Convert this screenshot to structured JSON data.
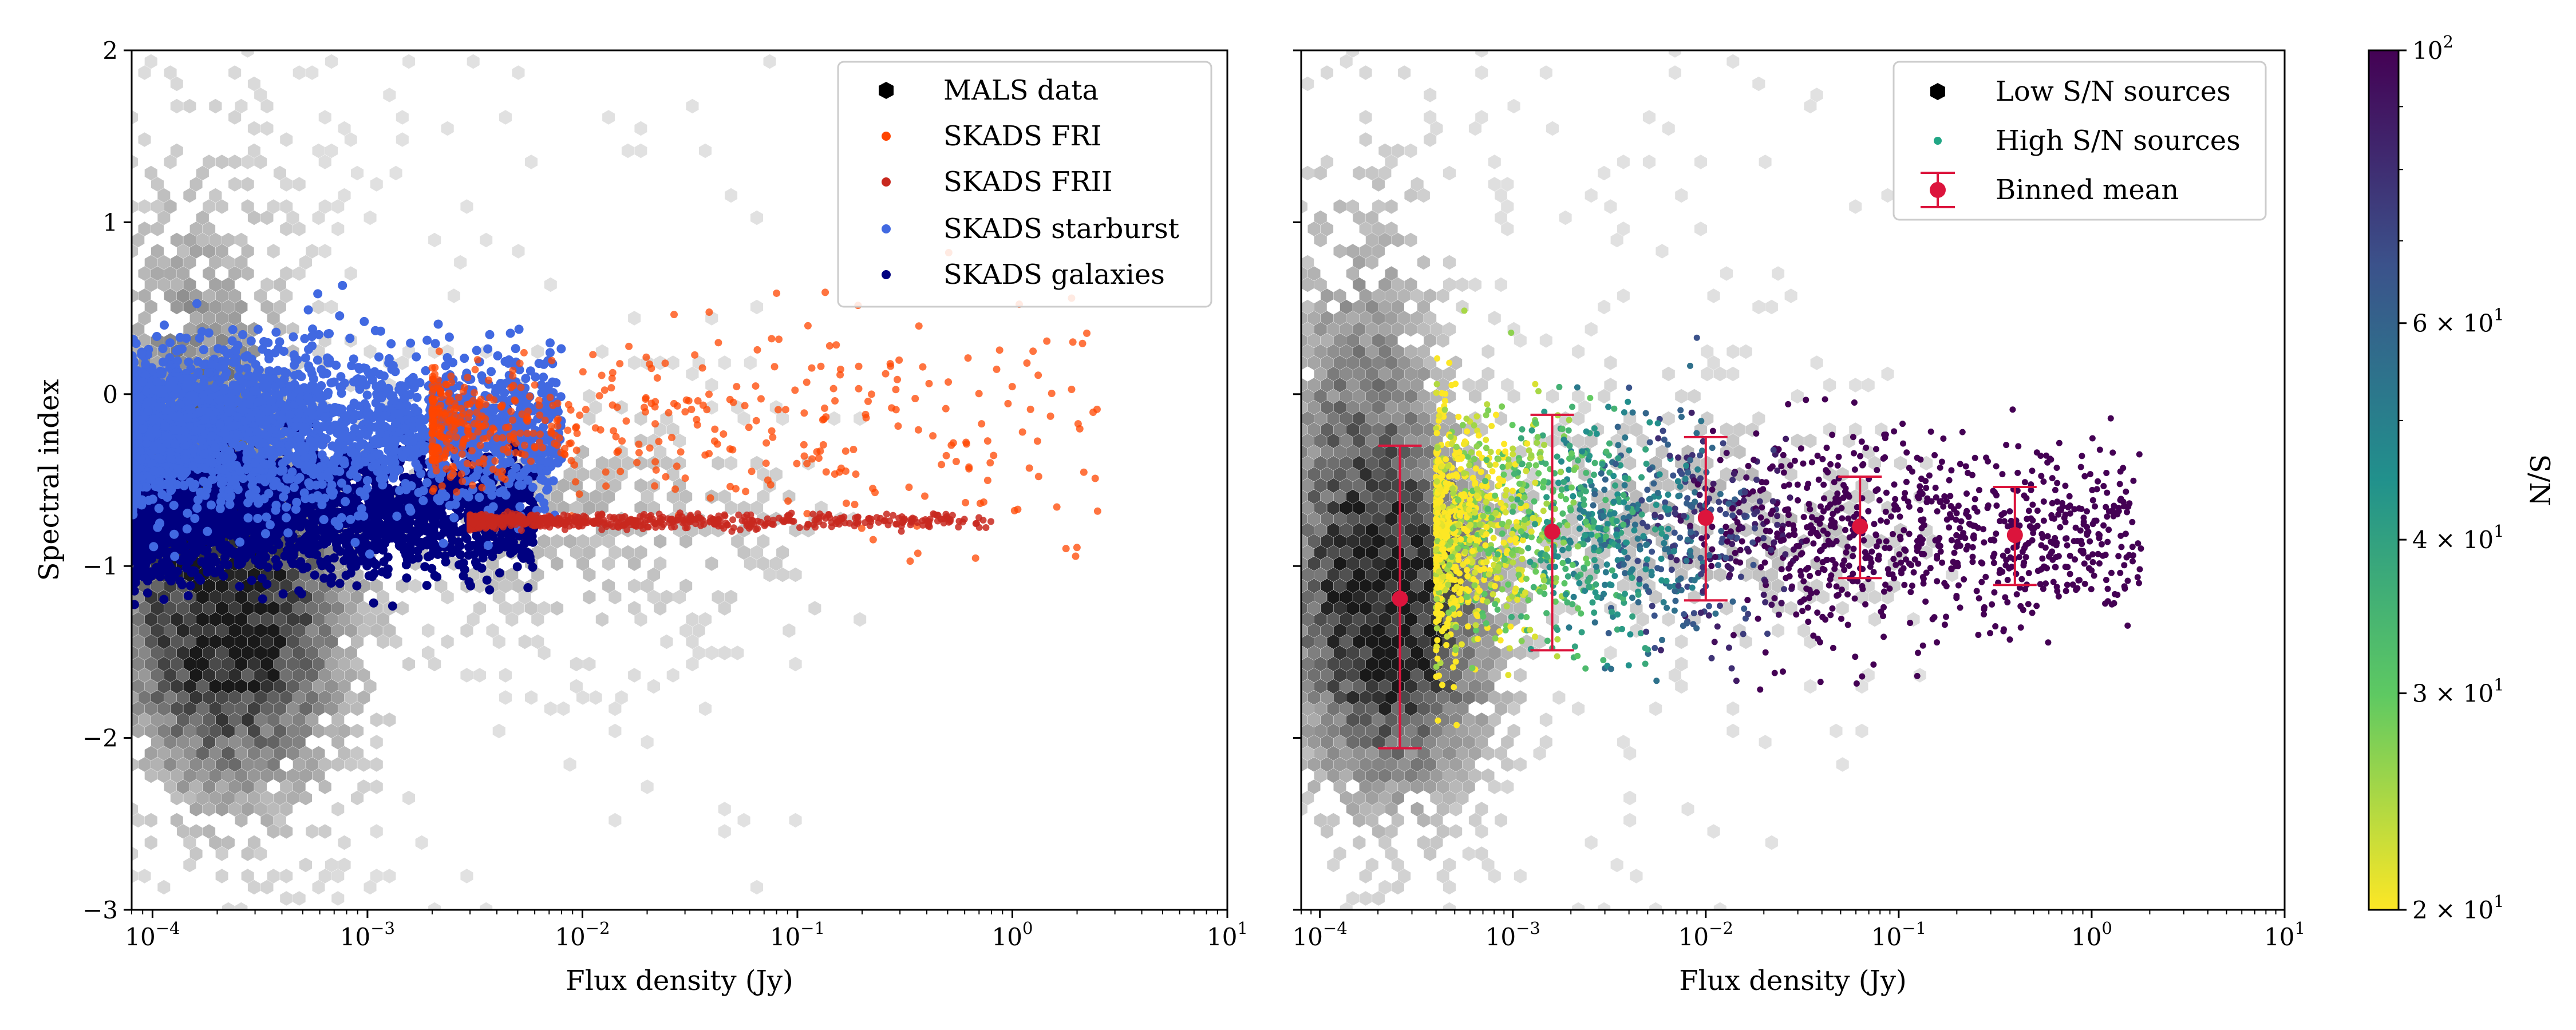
{
  "chart_data": [
    {
      "type": "scatter",
      "panel": "left",
      "xscale": "log",
      "xlim": [
        8e-05,
        10
      ],
      "ylim": [
        -3,
        2
      ],
      "xlabel": "Flux density (Jy)",
      "ylabel": "Spectral index",
      "xticks": [
        {
          "base": "10",
          "exp": "−4",
          "value": 0.0001
        },
        {
          "base": "10",
          "exp": "−3",
          "value": 0.001
        },
        {
          "base": "10",
          "exp": "−2",
          "value": 0.01
        },
        {
          "base": "10",
          "exp": "−1",
          "value": 0.1
        },
        {
          "base": "10",
          "exp": "0",
          "value": 1
        },
        {
          "base": "10",
          "exp": "1",
          "value": 10
        }
      ],
      "yticks": [
        {
          "label": "2",
          "value": 2
        },
        {
          "label": "1",
          "value": 1
        },
        {
          "label": "0",
          "value": 0
        },
        {
          "label": "−1",
          "value": -1
        },
        {
          "label": "−2",
          "value": -2
        },
        {
          "label": "−3",
          "value": -3
        }
      ],
      "legend_position": "top-right",
      "legend": [
        {
          "label": "MALS data",
          "marker": "hexagon",
          "color": "#000000"
        },
        {
          "label": "SKADS FRI",
          "marker": "dot",
          "color": "#ff4500"
        },
        {
          "label": "SKADS FRII",
          "marker": "dot",
          "color": "#c8281e"
        },
        {
          "label": "SKADS starburst",
          "marker": "dot",
          "color": "#4169e1"
        },
        {
          "label": "SKADS galaxies",
          "marker": "dot",
          "color": "#000080"
        }
      ],
      "hexbin_density": {
        "description": "MALS data grayscale hexbin",
        "peak": {
          "x": 0.00025,
          "y": -1.35
        },
        "extent_x": [
          8e-05,
          0.2
        ],
        "extent_y": [
          -3,
          2
        ]
      },
      "series": [
        {
          "name": "SKADS galaxies",
          "color": "#000080",
          "x_range": [
            8e-05,
            0.006
          ],
          "y_center": -0.68,
          "y_spread": 0.18
        },
        {
          "name": "SKADS starburst",
          "color": "#4169e1",
          "x_range": [
            8e-05,
            0.008
          ],
          "y_center": -0.2,
          "y_spread": 0.22
        },
        {
          "name": "SKADS FRI",
          "color": "#ff4500",
          "x_range": [
            0.002,
            2.5
          ],
          "y_center": -0.18,
          "y_spread": 0.15
        },
        {
          "name": "SKADS FRII",
          "color": "#c8281e",
          "x_range": [
            0.003,
            0.8
          ],
          "y_center": -0.74,
          "y_spread": 0.02
        }
      ]
    },
    {
      "type": "scatter",
      "panel": "right",
      "xscale": "log",
      "xlim": [
        8e-05,
        10
      ],
      "ylim": [
        -3,
        2
      ],
      "xlabel": "Flux density (Jy)",
      "xticks": [
        {
          "base": "10",
          "exp": "−4",
          "value": 0.0001
        },
        {
          "base": "10",
          "exp": "−3",
          "value": 0.001
        },
        {
          "base": "10",
          "exp": "−2",
          "value": 0.01
        },
        {
          "base": "10",
          "exp": "−1",
          "value": 0.1
        },
        {
          "base": "10",
          "exp": "0",
          "value": 1
        },
        {
          "base": "10",
          "exp": "1",
          "value": 10
        }
      ],
      "legend_position": "top-right",
      "legend": [
        {
          "label": "Low S/N sources",
          "marker": "hexagon",
          "color": "#000000"
        },
        {
          "label": "High S/N sources",
          "marker": "dot",
          "color": "#21a685"
        },
        {
          "label": "Binned mean",
          "marker": "errorbar",
          "color": "#dc143c"
        }
      ],
      "binned_mean": {
        "color": "#dc143c",
        "x": [
          0.00026,
          0.0016,
          0.01,
          0.063,
          0.4
        ],
        "y": [
          -1.19,
          -0.8,
          -0.72,
          -0.77,
          -0.82
        ],
        "y_low": [
          -2.06,
          -1.49,
          -1.2,
          -1.07,
          -1.11
        ],
        "y_high": [
          -0.3,
          -0.12,
          -0.25,
          -0.48,
          -0.54
        ]
      },
      "high_sn_points": {
        "colormap": "viridis_r",
        "x_range": [
          0.0004,
          1.8
        ],
        "y_center": -0.8,
        "y_spread": 0.35
      },
      "colorbar": {
        "label": "S/N",
        "scale": "log",
        "range": [
          20,
          100
        ],
        "colors_low_to_high": [
          "#fde725",
          "#5ec962",
          "#21918c",
          "#3b528b",
          "#440154"
        ],
        "ticks": [
          {
            "base": "2 × 10",
            "exp": "1",
            "value": 20
          },
          {
            "base": "3 × 10",
            "exp": "1",
            "value": 30
          },
          {
            "base": "4 × 10",
            "exp": "1",
            "value": 40
          },
          {
            "base": "6 × 10",
            "exp": "1",
            "value": 60
          },
          {
            "base": "10",
            "exp": "2",
            "value": 100
          }
        ]
      }
    }
  ]
}
